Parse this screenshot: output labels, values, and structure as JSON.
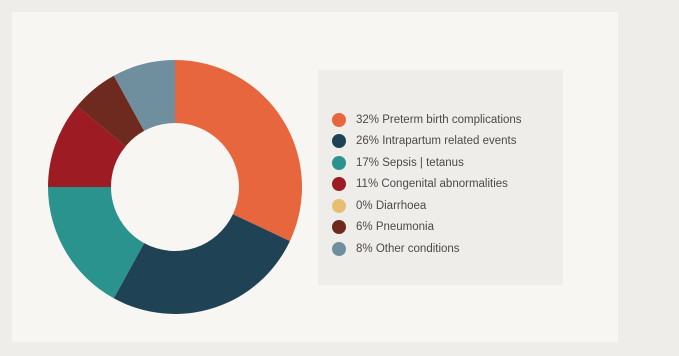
{
  "chart_data": {
    "type": "pie",
    "donut": true,
    "legend_position": "right",
    "series": [
      {
        "name": "Preterm birth complications",
        "label": "32% Preterm birth complications",
        "value": 32,
        "color": "#e8663e"
      },
      {
        "name": "Intrapartum related events",
        "label": "26% Intrapartum related events",
        "value": 26,
        "color": "#1f4255"
      },
      {
        "name": "Sepsis | tetanus",
        "label": "17% Sepsis | tetanus",
        "value": 17,
        "color": "#2a938e"
      },
      {
        "name": "Congenital abnormalities",
        "label": "11% Congenital abnormalities",
        "value": 11,
        "color": "#9d1b23"
      },
      {
        "name": "Diarrhoea",
        "label": "0% Diarrhoea",
        "value": 0,
        "color": "#e6c070"
      },
      {
        "name": "Pneumonia",
        "label": "6% Pneumonia",
        "value": 6,
        "color": "#6e2a1f"
      },
      {
        "name": "Other conditions",
        "label": "8% Other conditions",
        "value": 8,
        "color": "#6f8e9e"
      }
    ]
  }
}
